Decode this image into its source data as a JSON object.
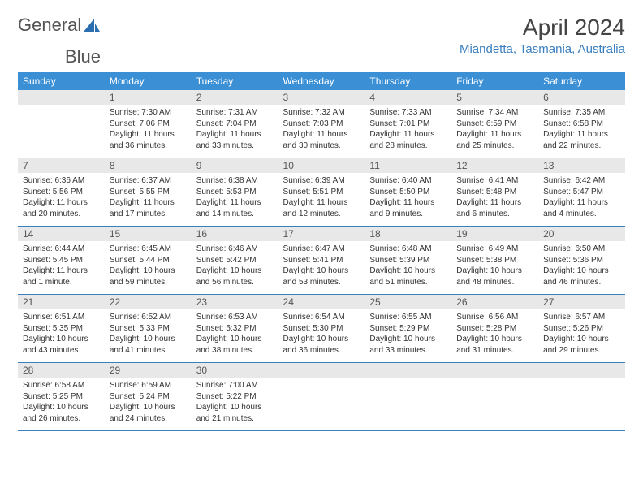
{
  "logo": {
    "textLeft": "General",
    "textRight": "Blue",
    "iconColor": "#2b6fb0"
  },
  "title": "April 2024",
  "location": "Miandetta, Tasmania, Australia",
  "colors": {
    "headerBg": "#3b8fd4",
    "headerText": "#ffffff",
    "dayNumBg": "#e8e8e8",
    "dayNumText": "#555555",
    "borderColor": "#3b7fbf",
    "bodyText": "#333333",
    "locationColor": "#3b7fbf"
  },
  "weekdays": [
    "Sunday",
    "Monday",
    "Tuesday",
    "Wednesday",
    "Thursday",
    "Friday",
    "Saturday"
  ],
  "grid": [
    [
      null,
      {
        "n": "1",
        "sr": "7:30 AM",
        "ss": "7:06 PM",
        "dl": "11 hours and 36 minutes."
      },
      {
        "n": "2",
        "sr": "7:31 AM",
        "ss": "7:04 PM",
        "dl": "11 hours and 33 minutes."
      },
      {
        "n": "3",
        "sr": "7:32 AM",
        "ss": "7:03 PM",
        "dl": "11 hours and 30 minutes."
      },
      {
        "n": "4",
        "sr": "7:33 AM",
        "ss": "7:01 PM",
        "dl": "11 hours and 28 minutes."
      },
      {
        "n": "5",
        "sr": "7:34 AM",
        "ss": "6:59 PM",
        "dl": "11 hours and 25 minutes."
      },
      {
        "n": "6",
        "sr": "7:35 AM",
        "ss": "6:58 PM",
        "dl": "11 hours and 22 minutes."
      }
    ],
    [
      {
        "n": "7",
        "sr": "6:36 AM",
        "ss": "5:56 PM",
        "dl": "11 hours and 20 minutes."
      },
      {
        "n": "8",
        "sr": "6:37 AM",
        "ss": "5:55 PM",
        "dl": "11 hours and 17 minutes."
      },
      {
        "n": "9",
        "sr": "6:38 AM",
        "ss": "5:53 PM",
        "dl": "11 hours and 14 minutes."
      },
      {
        "n": "10",
        "sr": "6:39 AM",
        "ss": "5:51 PM",
        "dl": "11 hours and 12 minutes."
      },
      {
        "n": "11",
        "sr": "6:40 AM",
        "ss": "5:50 PM",
        "dl": "11 hours and 9 minutes."
      },
      {
        "n": "12",
        "sr": "6:41 AM",
        "ss": "5:48 PM",
        "dl": "11 hours and 6 minutes."
      },
      {
        "n": "13",
        "sr": "6:42 AM",
        "ss": "5:47 PM",
        "dl": "11 hours and 4 minutes."
      }
    ],
    [
      {
        "n": "14",
        "sr": "6:44 AM",
        "ss": "5:45 PM",
        "dl": "11 hours and 1 minute."
      },
      {
        "n": "15",
        "sr": "6:45 AM",
        "ss": "5:44 PM",
        "dl": "10 hours and 59 minutes."
      },
      {
        "n": "16",
        "sr": "6:46 AM",
        "ss": "5:42 PM",
        "dl": "10 hours and 56 minutes."
      },
      {
        "n": "17",
        "sr": "6:47 AM",
        "ss": "5:41 PM",
        "dl": "10 hours and 53 minutes."
      },
      {
        "n": "18",
        "sr": "6:48 AM",
        "ss": "5:39 PM",
        "dl": "10 hours and 51 minutes."
      },
      {
        "n": "19",
        "sr": "6:49 AM",
        "ss": "5:38 PM",
        "dl": "10 hours and 48 minutes."
      },
      {
        "n": "20",
        "sr": "6:50 AM",
        "ss": "5:36 PM",
        "dl": "10 hours and 46 minutes."
      }
    ],
    [
      {
        "n": "21",
        "sr": "6:51 AM",
        "ss": "5:35 PM",
        "dl": "10 hours and 43 minutes."
      },
      {
        "n": "22",
        "sr": "6:52 AM",
        "ss": "5:33 PM",
        "dl": "10 hours and 41 minutes."
      },
      {
        "n": "23",
        "sr": "6:53 AM",
        "ss": "5:32 PM",
        "dl": "10 hours and 38 minutes."
      },
      {
        "n": "24",
        "sr": "6:54 AM",
        "ss": "5:30 PM",
        "dl": "10 hours and 36 minutes."
      },
      {
        "n": "25",
        "sr": "6:55 AM",
        "ss": "5:29 PM",
        "dl": "10 hours and 33 minutes."
      },
      {
        "n": "26",
        "sr": "6:56 AM",
        "ss": "5:28 PM",
        "dl": "10 hours and 31 minutes."
      },
      {
        "n": "27",
        "sr": "6:57 AM",
        "ss": "5:26 PM",
        "dl": "10 hours and 29 minutes."
      }
    ],
    [
      {
        "n": "28",
        "sr": "6:58 AM",
        "ss": "5:25 PM",
        "dl": "10 hours and 26 minutes."
      },
      {
        "n": "29",
        "sr": "6:59 AM",
        "ss": "5:24 PM",
        "dl": "10 hours and 24 minutes."
      },
      {
        "n": "30",
        "sr": "7:00 AM",
        "ss": "5:22 PM",
        "dl": "10 hours and 21 minutes."
      },
      null,
      null,
      null,
      null
    ]
  ],
  "labels": {
    "sunrise": "Sunrise: ",
    "sunset": "Sunset: ",
    "daylight": "Daylight: "
  }
}
